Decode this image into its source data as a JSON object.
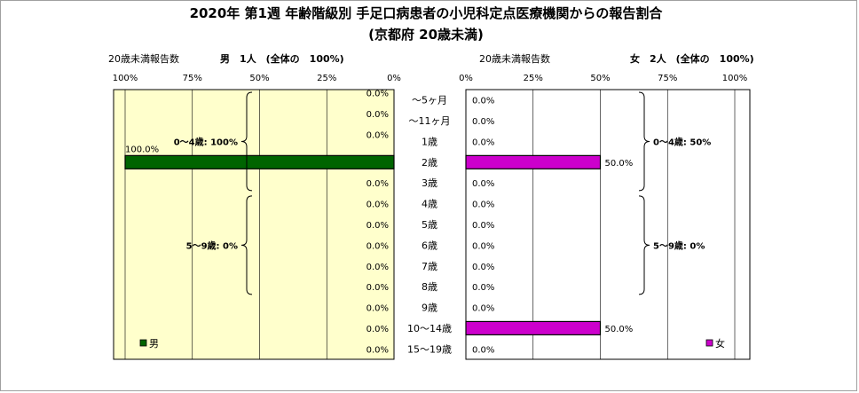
{
  "chart_data": {
    "type": "bar",
    "title": "2020年 第1週 年齢階級別 手足口病患者の小児科定点医療機関からの報告割合",
    "subtitle": "(京都府 20歳未満)",
    "categories": [
      "～5ヶ月",
      "～11ヶ月",
      "1歳",
      "2歳",
      "3歳",
      "4歳",
      "5歳",
      "6歳",
      "7歳",
      "8歳",
      "9歳",
      "10～14歳",
      "15～19歳"
    ],
    "series": [
      {
        "name": "男",
        "values": [
          0.0,
          0.0,
          0.0,
          100.0,
          0.0,
          0.0,
          0.0,
          0.0,
          0.0,
          0.0,
          0.0,
          0.0,
          0.0
        ],
        "labels": [
          "0.0%",
          "0.0%",
          "0.0%",
          "100.0%",
          "0.0%",
          "0.0%",
          "0.0%",
          "0.0%",
          "0.0%",
          "0.0%",
          "0.0%",
          "0.0%",
          "0.0%"
        ],
        "color": "#006400",
        "panel_header_label": "20歳未満報告数",
        "panel_header_summary": "男　1人　(全体の　100%)",
        "groups": [
          {
            "label": "0～4歳: 100%"
          },
          {
            "label": "5～9歳: 0%"
          }
        ]
      },
      {
        "name": "女",
        "values": [
          0.0,
          0.0,
          0.0,
          50.0,
          0.0,
          0.0,
          0.0,
          0.0,
          0.0,
          0.0,
          0.0,
          50.0,
          0.0
        ],
        "labels": [
          "0.0%",
          "0.0%",
          "0.0%",
          "50.0%",
          "0.0%",
          "0.0%",
          "0.0%",
          "0.0%",
          "0.0%",
          "0.0%",
          "0.0%",
          "50.0%",
          "0.0%"
        ],
        "color": "#cc00cc",
        "panel_header_label": "20歳未満報告数",
        "panel_header_summary": "女　2人　(全体の　100%)",
        "groups": [
          {
            "label": "0～4歳: 50%"
          },
          {
            "label": "5～9歳: 0%"
          }
        ]
      }
    ],
    "x_ticks": [
      "0%",
      "25%",
      "50%",
      "75%",
      "100%"
    ],
    "xlim": [
      0,
      100
    ],
    "grid": true,
    "legend": [
      "男",
      "女"
    ],
    "plot_background": "#ffffcc"
  }
}
